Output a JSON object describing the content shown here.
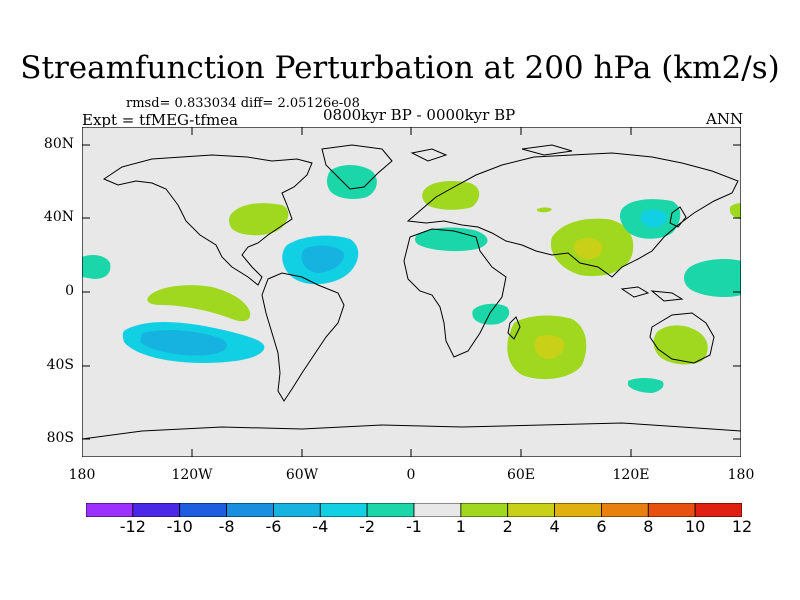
{
  "title": "Streamfunction Perturbation at 200 hPa (km2/s)",
  "stats": "rmsd= 0.833034 diff= 2.05126e-08",
  "experiment": "Expt = tfMEG-tfmea",
  "period": "0800kyr BP - 0000kyr BP",
  "season": "ANN",
  "lat_labels": [
    "80N",
    "40N",
    "0",
    "40S",
    "80S"
  ],
  "lon_labels": [
    "180",
    "120W",
    "60W",
    "0",
    "60E",
    "120E",
    "180"
  ],
  "colorbar": {
    "labels": [
      "-12",
      "-10",
      "-8",
      "-6",
      "-4",
      "-2",
      "-1",
      "1",
      "2",
      "4",
      "6",
      "8",
      "10",
      "12"
    ],
    "colors": [
      "#9b30ff",
      "#4b28e8",
      "#1e5ddf",
      "#1a8fe0",
      "#16b3e0",
      "#12d0e4",
      "#1ad6a8",
      "#e8e8e8",
      "#a0d820",
      "#c8d018",
      "#e0b010",
      "#e88010",
      "#e85010",
      "#e02010"
    ]
  },
  "map": {
    "background": "#e8e8e8",
    "anomalies": [
      {
        "name": "pacific-south-negative",
        "level": "-2",
        "center_lon": -140,
        "center_lat": -27
      },
      {
        "name": "pacific-equatorial-positive",
        "level": "1",
        "center_lon": -120,
        "center_lat": -3
      },
      {
        "name": "atlantic-tropical-negative",
        "level": "-2",
        "center_lon": -52,
        "center_lat": 18
      },
      {
        "name": "north-america-positive",
        "level": "1",
        "center_lon": -82,
        "center_lat": 43
      },
      {
        "name": "greenland-negative",
        "level": "-1",
        "center_lon": -33,
        "center_lat": 64
      },
      {
        "name": "europe-positive",
        "level": "1",
        "center_lon": 15,
        "center_lat": 55
      },
      {
        "name": "mediterranean-negative",
        "level": "-1",
        "center_lon": 18,
        "center_lat": 30
      },
      {
        "name": "east-africa-negative",
        "level": "-1",
        "center_lon": 48,
        "center_lat": -11
      },
      {
        "name": "south-indian-positive",
        "level": "2",
        "center_lon": 75,
        "center_lat": -28
      },
      {
        "name": "asia-positive",
        "level": "2",
        "center_lon": 100,
        "center_lat": 25
      },
      {
        "name": "japan-negative",
        "level": "-2",
        "center_lon": 140,
        "center_lat": 40
      },
      {
        "name": "west-pacific-negative",
        "level": "-2",
        "center_lon": 170,
        "center_lat": 10
      },
      {
        "name": "australia-positive",
        "level": "1",
        "center_lon": 145,
        "center_lat": -27
      },
      {
        "name": "southern-ocean-negative",
        "level": "-1",
        "center_lon": 127,
        "center_lat": -50
      }
    ]
  }
}
